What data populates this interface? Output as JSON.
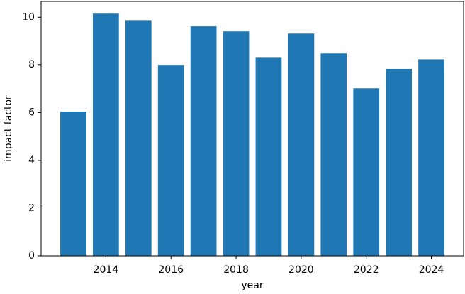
{
  "chart_data": {
    "type": "bar",
    "x": [
      2013,
      2014,
      2015,
      2016,
      2017,
      2018,
      2019,
      2020,
      2021,
      2022,
      2023,
      2024
    ],
    "values": [
      6.04,
      10.15,
      9.85,
      7.99,
      9.62,
      9.41,
      8.31,
      9.32,
      8.49,
      7.01,
      7.84,
      8.22
    ],
    "color": "#1f77b4",
    "xlabel": "year",
    "ylabel": "impact factor",
    "xlim": [
      2012.01,
      2024.99
    ],
    "xticks": [
      2014,
      2016,
      2018,
      2020,
      2022,
      2024
    ],
    "ylim": [
      0,
      10.66
    ],
    "yticks": [
      0,
      2,
      4,
      6,
      8,
      10
    ]
  }
}
